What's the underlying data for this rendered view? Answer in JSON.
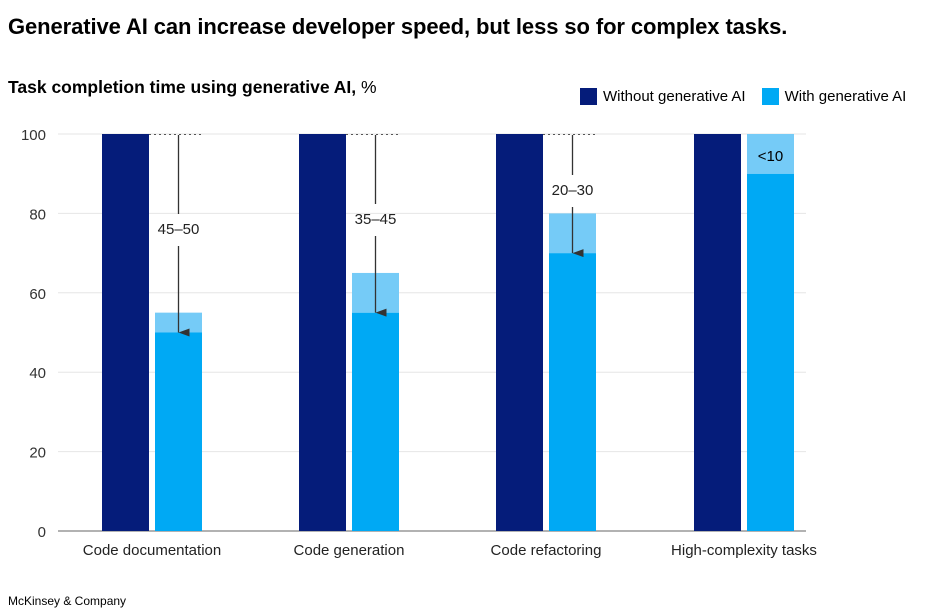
{
  "headline": "Generative AI can increase developer speed, but less so for complex tasks.",
  "subtitle_bold": "Task completion time using generative AI,",
  "subtitle_unit": "%",
  "legend": [
    {
      "label": "Without generative AI",
      "color": "#051c7a"
    },
    {
      "label": "With generative AI",
      "color": "#00a9f4"
    }
  ],
  "source": "McKinsey & Company",
  "colors": {
    "without": "#051c7a",
    "with": "#00a9f4",
    "range": "#75cbf7",
    "grid": "#e6e6e6",
    "arrow": "#333333"
  },
  "chart_data": {
    "type": "bar",
    "title": "Task completion time using generative AI, %",
    "ylim": [
      0,
      100
    ],
    "yticks": [
      0,
      20,
      40,
      60,
      80,
      100
    ],
    "categories": [
      "Code documentation",
      "Code generation",
      "Code refactoring",
      "High-complexity tasks"
    ],
    "series": [
      {
        "name": "Without generative AI",
        "values": [
          100,
          100,
          100,
          100
        ]
      },
      {
        "name": "With generative AI",
        "values": [
          50,
          55,
          70,
          90
        ],
        "range_top": [
          55,
          65,
          80,
          100
        ]
      }
    ],
    "annotations": [
      "45–50",
      "35–45",
      "20–30",
      "<10"
    ],
    "grid": true,
    "legend_position": "top-right"
  }
}
